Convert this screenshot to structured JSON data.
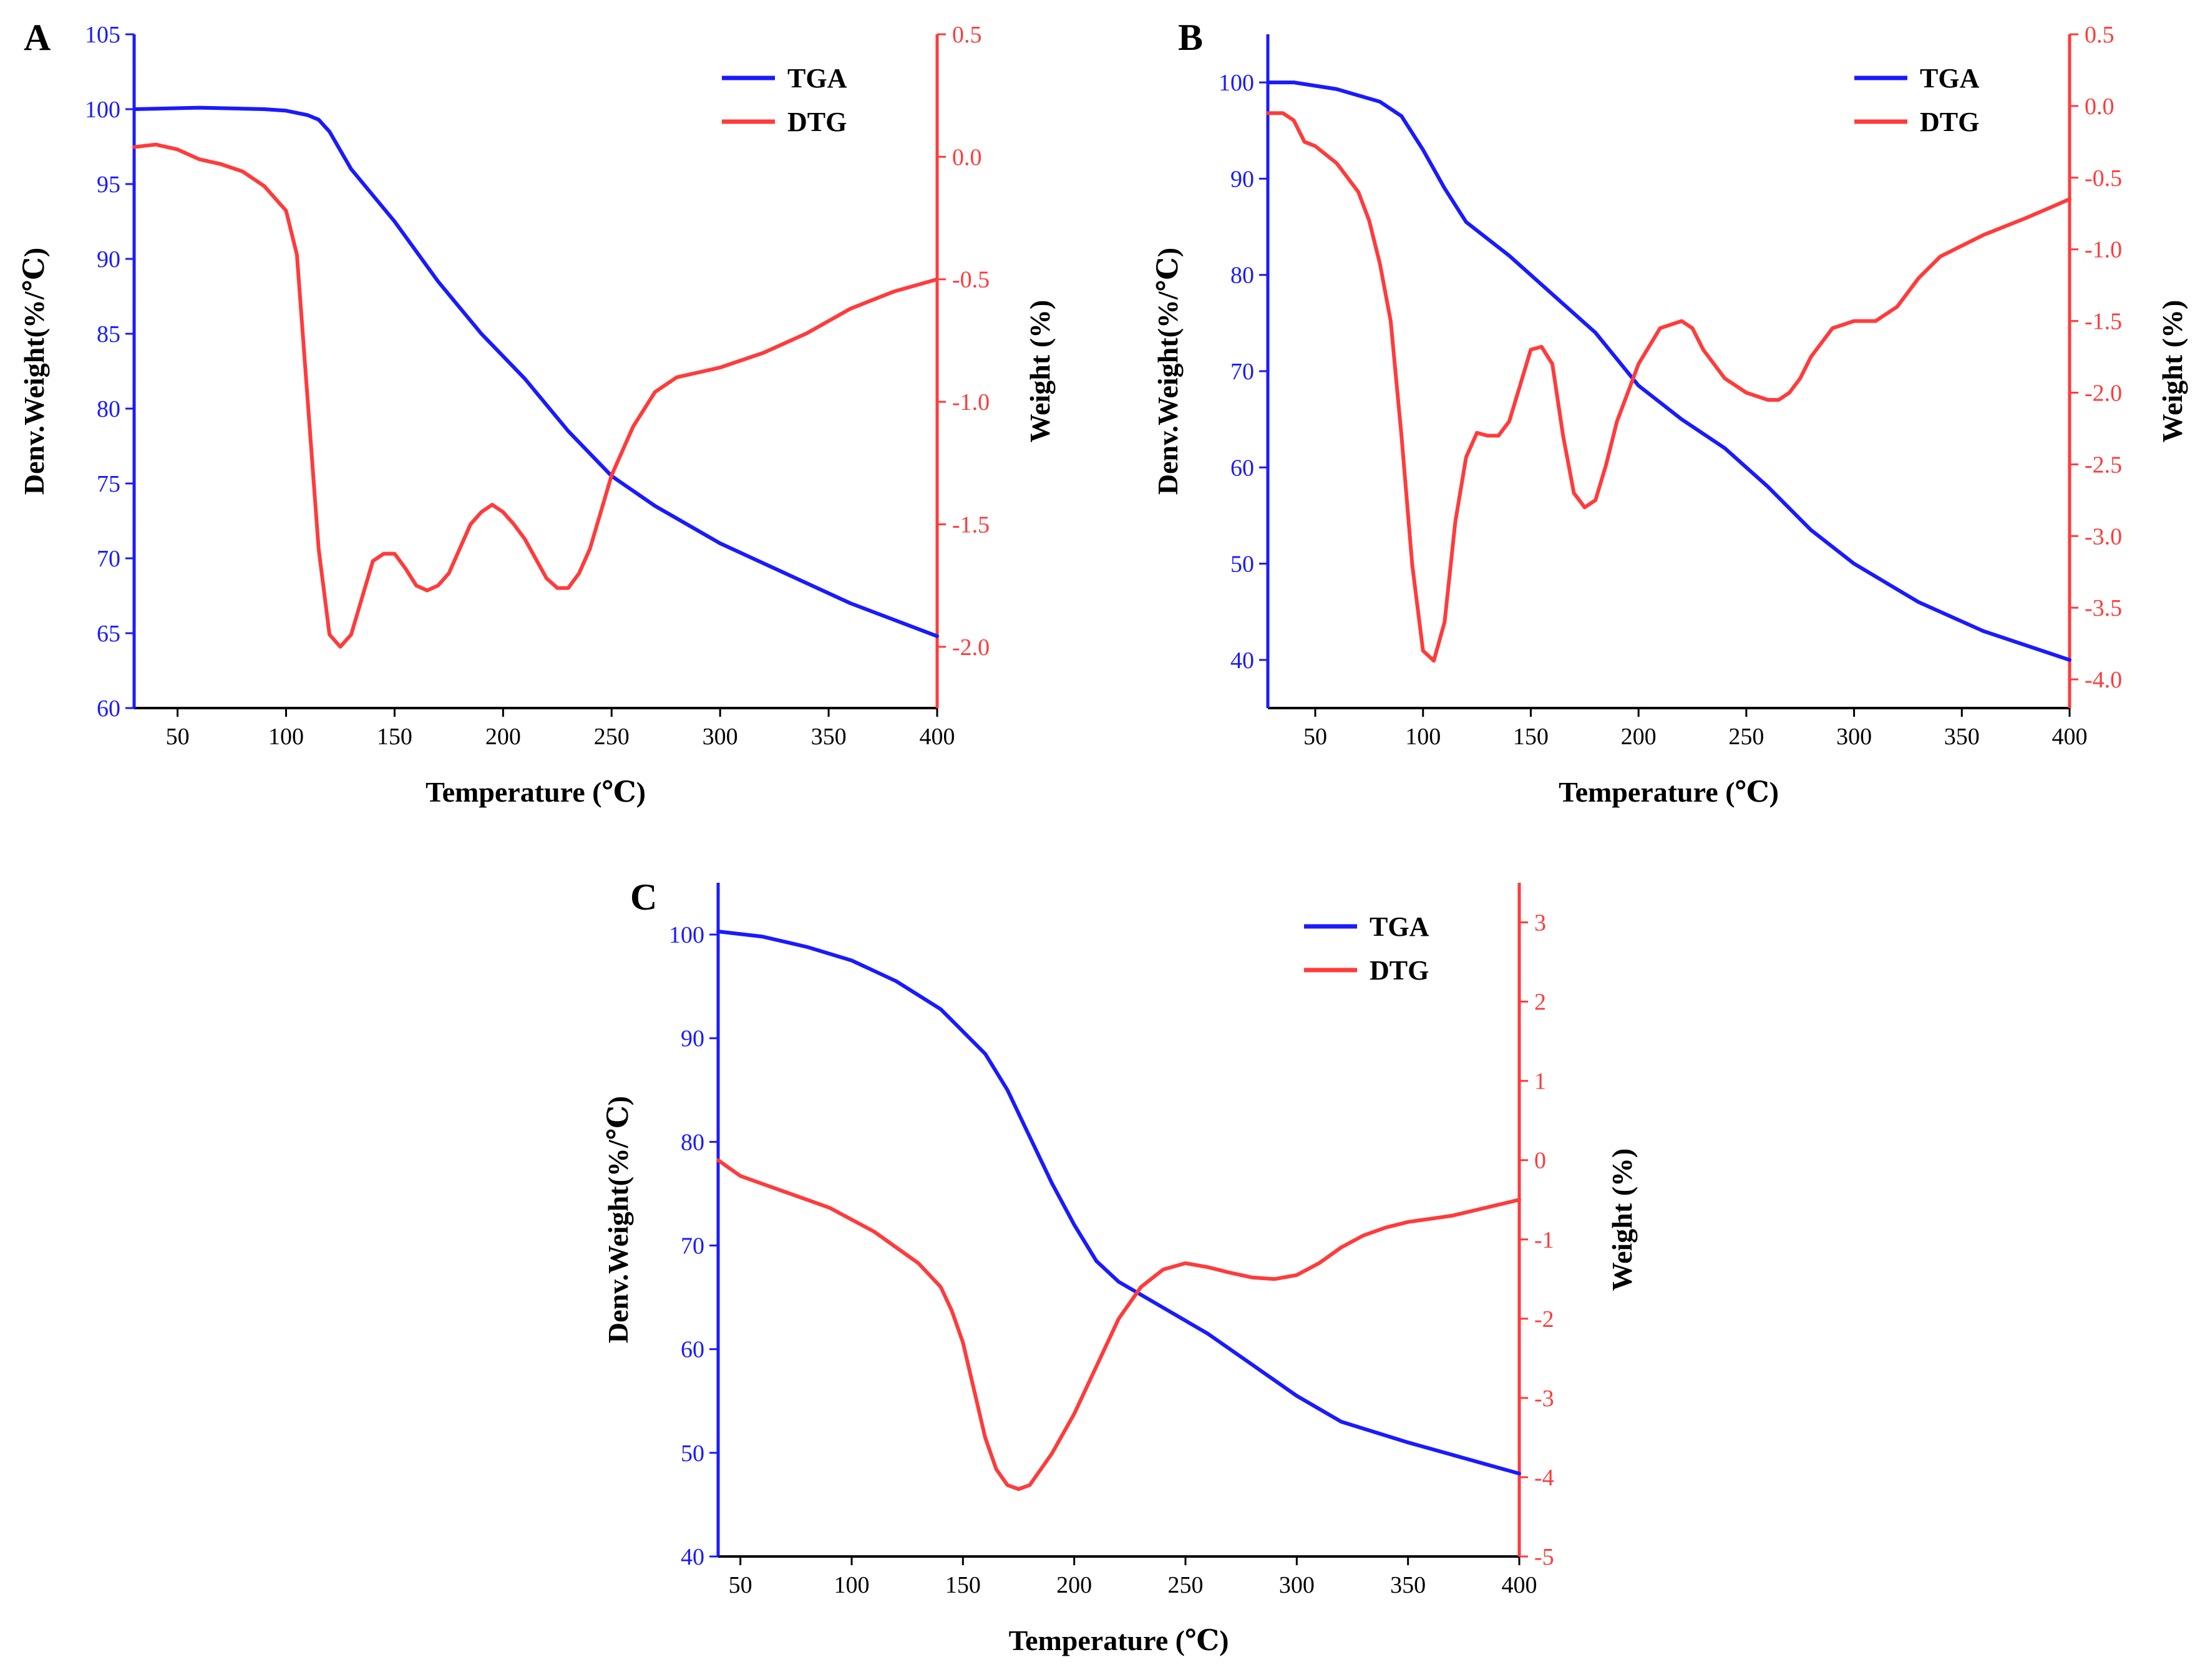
{
  "colors": {
    "tga": "#1a1aff",
    "dtg": "#ff3b3b",
    "axis": "#000000"
  },
  "chart_data": [
    {
      "panel": "A",
      "type": "line",
      "xlabel": "Temperature (℃)",
      "ylabel_left": "Denv.Weight(%/℃)",
      "ylabel_right": "Weight (%)",
      "xlim": [
        30,
        400
      ],
      "ylim_left": [
        60,
        105
      ],
      "ylim_right": [
        -2.25,
        0.5
      ],
      "xticks": [
        50,
        100,
        150,
        200,
        250,
        300,
        350,
        400
      ],
      "xtick_labels": [
        "50",
        "100",
        "150",
        "200",
        "250",
        "300",
        "350",
        "400"
      ],
      "yticks_left": [
        60,
        65,
        70,
        75,
        80,
        85,
        90,
        95,
        100,
        105
      ],
      "ytick_labels_left": [
        "60",
        "65",
        "70",
        "75",
        "80",
        "85",
        "90",
        "95",
        "100",
        "105"
      ],
      "yticks_right": [
        -2.0,
        -1.5,
        -1.0,
        -0.5,
        0.0,
        0.5
      ],
      "ytick_labels_right": [
        "-2.0",
        "-1.5",
        "-1.0",
        "-0.5",
        "0.0",
        "0.5"
      ],
      "legend": [
        "TGA",
        "DTG"
      ],
      "legend_position": "top-right",
      "series": [
        {
          "name": "TGA",
          "axis": "left",
          "x": [
            30,
            60,
            90,
            100,
            110,
            115,
            120,
            130,
            150,
            170,
            190,
            210,
            230,
            250,
            270,
            300,
            330,
            360,
            400
          ],
          "y": [
            100,
            100.1,
            100,
            99.9,
            99.6,
            99.3,
            98.5,
            96.0,
            92.5,
            88.5,
            85.0,
            82.0,
            78.5,
            75.5,
            73.5,
            71.0,
            69.0,
            67.0,
            64.8
          ]
        },
        {
          "name": "DTG",
          "axis": "right",
          "x": [
            30,
            40,
            50,
            60,
            70,
            80,
            90,
            100,
            105,
            110,
            115,
            120,
            125,
            130,
            135,
            140,
            145,
            150,
            155,
            160,
            165,
            170,
            175,
            180,
            185,
            190,
            195,
            200,
            205,
            210,
            215,
            220,
            225,
            230,
            235,
            240,
            245,
            250,
            260,
            270,
            280,
            290,
            300,
            320,
            340,
            360,
            380,
            400
          ],
          "y": [
            0.04,
            0.05,
            0.03,
            -0.01,
            -0.03,
            -0.06,
            -0.12,
            -0.22,
            -0.4,
            -1.0,
            -1.6,
            -1.95,
            -2.0,
            -1.95,
            -1.8,
            -1.65,
            -1.62,
            -1.62,
            -1.68,
            -1.75,
            -1.77,
            -1.75,
            -1.7,
            -1.6,
            -1.5,
            -1.45,
            -1.42,
            -1.45,
            -1.5,
            -1.56,
            -1.64,
            -1.72,
            -1.76,
            -1.76,
            -1.7,
            -1.6,
            -1.45,
            -1.3,
            -1.1,
            -0.96,
            -0.9,
            -0.88,
            -0.86,
            -0.8,
            -0.72,
            -0.62,
            -0.55,
            -0.5
          ]
        }
      ]
    },
    {
      "panel": "B",
      "type": "line",
      "xlabel": "Temperature (℃)",
      "ylabel_left": "Denv.Weight(%/℃)",
      "ylabel_right": "Weight (%)",
      "xlim": [
        28,
        400
      ],
      "ylim_left": [
        35,
        105
      ],
      "ylim_right": [
        -4.2,
        0.5
      ],
      "xticks": [
        50,
        100,
        150,
        200,
        250,
        300,
        350,
        400
      ],
      "xtick_labels": [
        "50",
        "100",
        "150",
        "200",
        "250",
        "300",
        "350",
        "400"
      ],
      "yticks_left": [
        40,
        50,
        60,
        70,
        80,
        90,
        100
      ],
      "ytick_labels_left": [
        "40",
        "50",
        "60",
        "70",
        "80",
        "90",
        "100"
      ],
      "yticks_right": [
        -4.0,
        -3.5,
        -3.0,
        -2.5,
        -2.0,
        -1.5,
        -1.0,
        -0.5,
        0.0,
        0.5
      ],
      "ytick_labels_right": [
        "-4.0",
        "-3.5",
        "-3.0",
        "-2.5",
        "-2.0",
        "-1.5",
        "-1.0",
        "-0.5",
        "0.0",
        "0.5"
      ],
      "legend": [
        "TGA",
        "DTG"
      ],
      "legend_position": "top-right",
      "series": [
        {
          "name": "TGA",
          "axis": "left",
          "x": [
            28,
            40,
            60,
            80,
            90,
            100,
            110,
            120,
            140,
            160,
            180,
            200,
            220,
            240,
            260,
            280,
            300,
            330,
            360,
            400
          ],
          "y": [
            100,
            100,
            99.3,
            98.0,
            96.5,
            93.0,
            89.0,
            85.5,
            82.0,
            78.0,
            74.0,
            68.5,
            65.0,
            62.0,
            58.0,
            53.5,
            50.0,
            46.0,
            43.0,
            40.0
          ]
        },
        {
          "name": "DTG",
          "axis": "right",
          "x": [
            28,
            35,
            40,
            45,
            50,
            60,
            70,
            75,
            80,
            85,
            90,
            95,
            100,
            105,
            110,
            115,
            120,
            125,
            130,
            135,
            140,
            145,
            150,
            155,
            160,
            165,
            170,
            175,
            180,
            185,
            190,
            195,
            200,
            210,
            220,
            225,
            230,
            240,
            250,
            260,
            265,
            270,
            275,
            280,
            290,
            300,
            310,
            320,
            330,
            340,
            360,
            380,
            400
          ],
          "y": [
            -0.05,
            -0.05,
            -0.1,
            -0.25,
            -0.28,
            -0.4,
            -0.6,
            -0.8,
            -1.1,
            -1.5,
            -2.3,
            -3.2,
            -3.8,
            -3.87,
            -3.6,
            -2.9,
            -2.45,
            -2.28,
            -2.3,
            -2.3,
            -2.2,
            -1.95,
            -1.7,
            -1.68,
            -1.8,
            -2.3,
            -2.7,
            -2.8,
            -2.75,
            -2.5,
            -2.2,
            -2.0,
            -1.8,
            -1.55,
            -1.5,
            -1.55,
            -1.7,
            -1.9,
            -2.0,
            -2.05,
            -2.05,
            -2.0,
            -1.9,
            -1.75,
            -1.55,
            -1.5,
            -1.5,
            -1.4,
            -1.2,
            -1.05,
            -0.9,
            -0.78,
            -0.65
          ]
        }
      ]
    },
    {
      "panel": "C",
      "type": "line",
      "xlabel": "Temperature (℃)",
      "ylabel_left": "Denv.Weight(%/℃)",
      "ylabel_right": "Weight (%)",
      "xlim": [
        40,
        400
      ],
      "ylim_left": [
        40,
        105
      ],
      "ylim_right": [
        -5,
        3.5
      ],
      "xticks": [
        50,
        100,
        150,
        200,
        250,
        300,
        350,
        400
      ],
      "xtick_labels": [
        "50",
        "100",
        "150",
        "200",
        "250",
        "300",
        "350",
        "400"
      ],
      "yticks_left": [
        40,
        50,
        60,
        70,
        80,
        90,
        100
      ],
      "ytick_labels_left": [
        "40",
        "50",
        "60",
        "70",
        "80",
        "90",
        "100"
      ],
      "yticks_right": [
        -5,
        -4,
        -3,
        -2,
        -1,
        0,
        1,
        2,
        3
      ],
      "ytick_labels_right": [
        "-5",
        "-4",
        "-3",
        "-2",
        "-1",
        "0",
        "1",
        "2",
        "3"
      ],
      "legend": [
        "TGA",
        "DTG"
      ],
      "legend_position": "top-right",
      "series": [
        {
          "name": "TGA",
          "axis": "left",
          "x": [
            40,
            60,
            80,
            100,
            120,
            140,
            160,
            170,
            180,
            190,
            200,
            210,
            220,
            240,
            260,
            280,
            300,
            320,
            350,
            400
          ],
          "y": [
            100.3,
            99.8,
            98.8,
            97.5,
            95.5,
            92.8,
            88.5,
            85.0,
            80.5,
            76.0,
            72.0,
            68.5,
            66.5,
            64.0,
            61.5,
            58.5,
            55.5,
            53.0,
            51.0,
            48.0
          ]
        },
        {
          "name": "DTG",
          "axis": "right",
          "x": [
            40,
            45,
            50,
            60,
            70,
            80,
            90,
            100,
            110,
            120,
            130,
            140,
            145,
            150,
            155,
            160,
            165,
            170,
            175,
            180,
            185,
            190,
            200,
            210,
            220,
            230,
            240,
            250,
            260,
            270,
            280,
            290,
            300,
            310,
            320,
            330,
            340,
            350,
            370,
            400
          ],
          "y": [
            0.0,
            -0.1,
            -0.2,
            -0.3,
            -0.4,
            -0.5,
            -0.6,
            -0.75,
            -0.9,
            -1.1,
            -1.3,
            -1.6,
            -1.9,
            -2.3,
            -2.9,
            -3.5,
            -3.9,
            -4.1,
            -4.15,
            -4.1,
            -3.9,
            -3.7,
            -3.2,
            -2.6,
            -2.0,
            -1.6,
            -1.38,
            -1.3,
            -1.35,
            -1.42,
            -1.48,
            -1.5,
            -1.45,
            -1.3,
            -1.1,
            -0.95,
            -0.85,
            -0.78,
            -0.7,
            -0.5
          ]
        }
      ]
    }
  ]
}
